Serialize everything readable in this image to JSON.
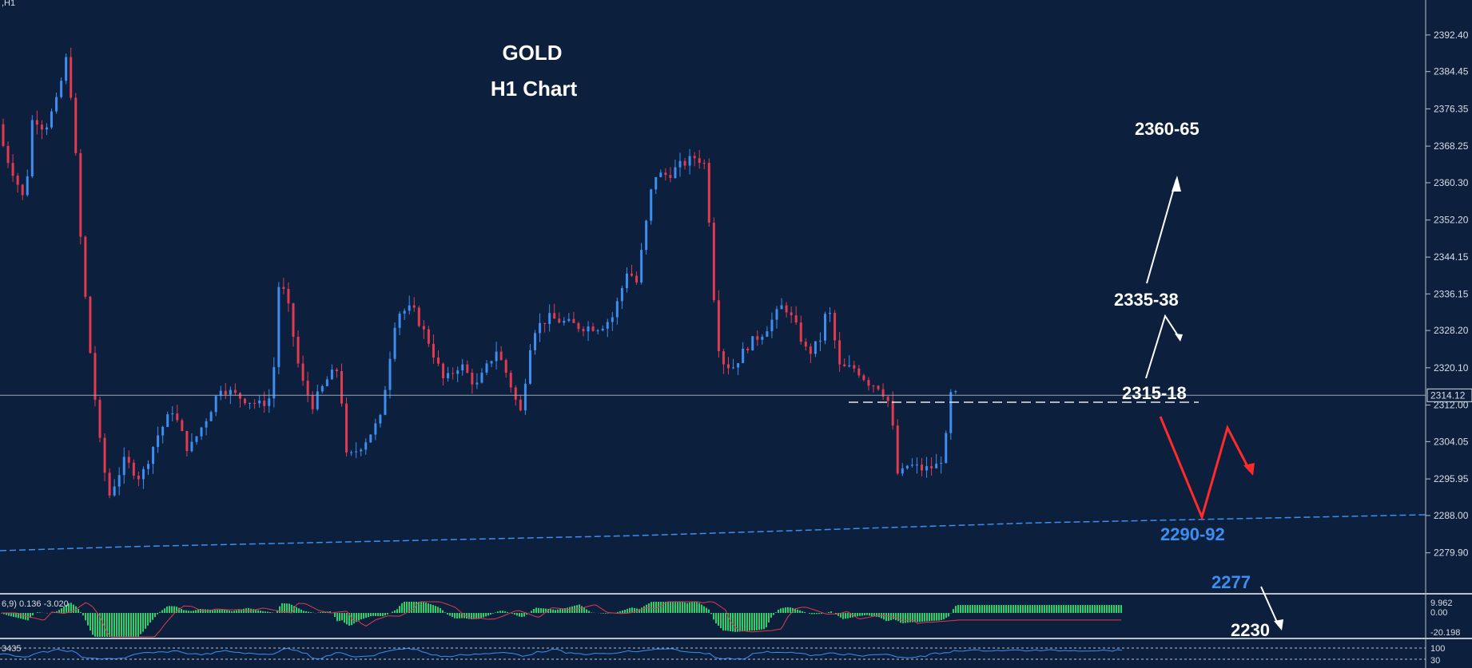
{
  "corner_label": ",H1",
  "title": {
    "line1": "GOLD",
    "line2": "H1 Chart"
  },
  "chart_data": {
    "type": "candlestick",
    "instrument": "GOLD",
    "timeframe": "H1",
    "y_axis": {
      "min": 2271,
      "max": 2400,
      "ticks": [
        2392.4,
        2384.45,
        2376.35,
        2368.25,
        2360.3,
        2352.2,
        2344.15,
        2336.15,
        2328.2,
        2320.1,
        2312.0,
        2304.05,
        2295.95,
        2288.0,
        2279.9
      ]
    },
    "current_price": 2314.12,
    "price_path": [
      [
        0,
        2373
      ],
      [
        12,
        2366
      ],
      [
        22,
        2362
      ],
      [
        35,
        2356
      ],
      [
        45,
        2375
      ],
      [
        60,
        2372
      ],
      [
        75,
        2378
      ],
      [
        88,
        2388
      ],
      [
        96,
        2374
      ],
      [
        106,
        2345
      ],
      [
        116,
        2325
      ],
      [
        128,
        2305
      ],
      [
        140,
        2292
      ],
      [
        160,
        2300
      ],
      [
        180,
        2296
      ],
      [
        200,
        2305
      ],
      [
        220,
        2311
      ],
      [
        240,
        2302
      ],
      [
        265,
        2310
      ],
      [
        280,
        2316
      ],
      [
        300,
        2314
      ],
      [
        330,
        2312
      ],
      [
        345,
        2314
      ],
      [
        352,
        2338
      ],
      [
        362,
        2336
      ],
      [
        380,
        2318
      ],
      [
        395,
        2312
      ],
      [
        415,
        2318
      ],
      [
        428,
        2320
      ],
      [
        438,
        2300
      ],
      [
        460,
        2304
      ],
      [
        480,
        2309
      ],
      [
        500,
        2332
      ],
      [
        520,
        2333
      ],
      [
        540,
        2326
      ],
      [
        560,
        2317
      ],
      [
        580,
        2321
      ],
      [
        600,
        2316
      ],
      [
        625,
        2324
      ],
      [
        640,
        2318
      ],
      [
        655,
        2310
      ],
      [
        670,
        2328
      ],
      [
        690,
        2331
      ],
      [
        710,
        2330
      ],
      [
        730,
        2329
      ],
      [
        755,
        2329
      ],
      [
        770,
        2331
      ],
      [
        780,
        2336
      ],
      [
        790,
        2342
      ],
      [
        800,
        2338
      ],
      [
        815,
        2354
      ],
      [
        822,
        2362
      ],
      [
        840,
        2362
      ],
      [
        855,
        2364
      ],
      [
        875,
        2366
      ],
      [
        888,
        2364
      ],
      [
        895,
        2340
      ],
      [
        905,
        2322
      ],
      [
        920,
        2320
      ],
      [
        940,
        2325
      ],
      [
        960,
        2328
      ],
      [
        985,
        2334
      ],
      [
        1000,
        2329
      ],
      [
        1015,
        2323
      ],
      [
        1030,
        2326
      ],
      [
        1040,
        2334
      ],
      [
        1055,
        2320
      ],
      [
        1075,
        2320
      ],
      [
        1090,
        2317
      ],
      [
        1105,
        2316
      ],
      [
        1118,
        2312
      ],
      [
        1128,
        2296
      ],
      [
        1140,
        2299
      ],
      [
        1160,
        2298
      ],
      [
        1180,
        2299
      ],
      [
        1188,
        2305
      ],
      [
        1195,
        2316
      ],
      [
        1198,
        2314.12
      ]
    ],
    "levels": [
      {
        "label": "2360-65",
        "value": 2362.5
      },
      {
        "label": "2335-38",
        "value": 2336.5
      },
      {
        "label": "2315-18",
        "value": 2316.5
      },
      {
        "label": "2290-92",
        "value": 2291
      },
      {
        "label": "2277",
        "value": 2277
      },
      {
        "label": "2230",
        "value": 2230
      }
    ],
    "indicator1": {
      "header": "6,9) 0.136 -3.020",
      "ticks": [
        "9.962",
        "0.00",
        "-20.198"
      ]
    },
    "indicator2": {
      "header": "3435",
      "ticks": [
        "100",
        "30"
      ]
    }
  },
  "colors": {
    "background": "#0c1f3d",
    "bull": "#3d8ef0",
    "bear": "#e23a4f",
    "text": "#ffffff",
    "support": "#3d8ef0",
    "forecast_down": "#ff2a2a",
    "histogram": "#2ad06b"
  },
  "annotations": {
    "target_high": "2360-65",
    "resistance": "2335-38",
    "pivot": "2315-18",
    "support": "2290-92",
    "support2": "2277",
    "target_low": "2230"
  }
}
